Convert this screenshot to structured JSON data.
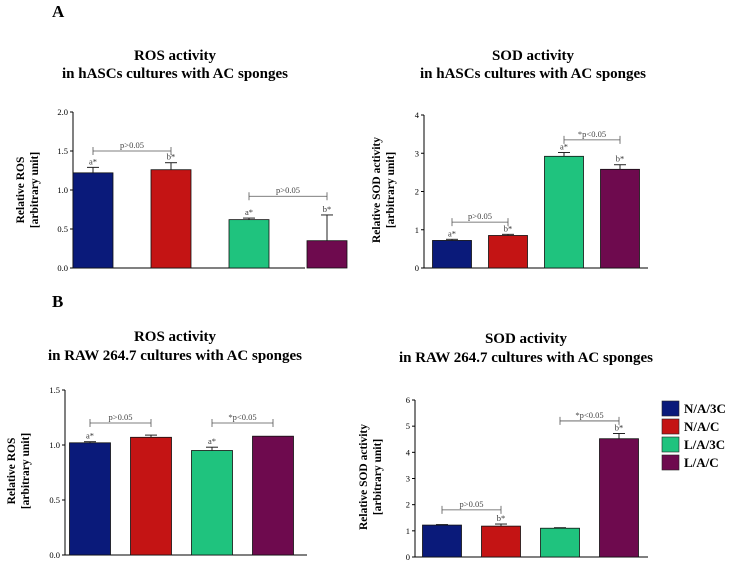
{
  "panel_labels": [
    "A",
    "B"
  ],
  "legend": {
    "entries": [
      {
        "label": "N/A/3C",
        "color": "#0a1a7a"
      },
      {
        "label": "N/A/C",
        "color": "#c41414"
      },
      {
        "label": "L/A/3C",
        "color": "#1fc37e"
      },
      {
        "label": "L/A/C",
        "color": "#6e0a4e"
      }
    ]
  },
  "chart_data": [
    {
      "id": "ros-hascs",
      "type": "bar",
      "title": [
        "ROS activity",
        "in hASCs cultures with AC sponges"
      ],
      "ylabel": [
        "Relative ROS",
        "[arbitrary unit]"
      ],
      "ylim": [
        0,
        2.0
      ],
      "yticks": [
        0.0,
        0.5,
        1.0,
        1.5,
        2.0
      ],
      "tick_decimals": 1,
      "categories": [
        "N/A/3C",
        "N/A/C",
        "L/A/3C",
        "L/A/C"
      ],
      "values": [
        1.22,
        1.26,
        0.62,
        0.35
      ],
      "errors": [
        0.07,
        0.09,
        0.02,
        0.33
      ],
      "labels": [
        "a*",
        "b*",
        "a*",
        "b*"
      ],
      "brackets": [
        {
          "from": 0,
          "to": 1,
          "y": 1.5,
          "text": "p>0.05"
        },
        {
          "from": 2,
          "to": 3,
          "y": 0.92,
          "text": "p>0.05"
        }
      ]
    },
    {
      "id": "sod-hascs",
      "type": "bar",
      "title": [
        "SOD activity",
        "in hASCs cultures with AC sponges"
      ],
      "ylabel": [
        "Relative SOD activity",
        "[arbitrary unit]"
      ],
      "ylim": [
        0,
        4
      ],
      "yticks": [
        0,
        1,
        2,
        3,
        4
      ],
      "tick_decimals": 0,
      "categories": [
        "N/A/3C",
        "N/A/C",
        "L/A/3C",
        "L/A/C"
      ],
      "values": [
        0.72,
        0.85,
        2.92,
        2.58
      ],
      "errors": [
        0.03,
        0.03,
        0.1,
        0.12
      ],
      "labels": [
        "a*",
        "b*",
        "a*",
        "b*"
      ],
      "brackets": [
        {
          "from": 0,
          "to": 1,
          "y": 1.2,
          "text": "p>0.05"
        },
        {
          "from": 2,
          "to": 3,
          "y": 3.35,
          "text": "*p<0.05"
        }
      ]
    },
    {
      "id": "ros-raw",
      "type": "bar",
      "title": [
        "ROS activity",
        "in RAW 264.7 cultures with AC sponges"
      ],
      "ylabel": [
        "Relative ROS",
        "[arbitrary unit]"
      ],
      "ylim": [
        0,
        1.5
      ],
      "yticks": [
        0.0,
        0.5,
        1.0,
        1.5
      ],
      "tick_decimals": 1,
      "categories": [
        "N/A/3C",
        "N/A/C",
        "L/A/3C",
        "L/A/C"
      ],
      "values": [
        1.02,
        1.07,
        0.95,
        1.08
      ],
      "errors": [
        0.01,
        0.02,
        0.03,
        0.0
      ],
      "labels": [
        "a*",
        "",
        "a*",
        ""
      ],
      "brackets": [
        {
          "from": 0,
          "to": 1,
          "y": 1.2,
          "text": "p>0.05"
        },
        {
          "from": 2,
          "to": 3,
          "y": 1.2,
          "text": "*p<0.05"
        }
      ]
    },
    {
      "id": "sod-raw",
      "type": "bar",
      "title": [
        "SOD activity",
        "in RAW 264.7 cultures with AC sponges"
      ],
      "ylabel": [
        "Relative SOD activity",
        "[arbitrary unit]"
      ],
      "ylim": [
        0,
        6
      ],
      "yticks": [
        0,
        1,
        2,
        3,
        4,
        5,
        6
      ],
      "tick_decimals": 0,
      "categories": [
        "N/A/3C",
        "N/A/C",
        "L/A/3C",
        "L/A/C"
      ],
      "values": [
        1.22,
        1.18,
        1.1,
        4.52
      ],
      "errors": [
        0.02,
        0.08,
        0.02,
        0.2
      ],
      "labels": [
        "",
        "b*",
        "",
        "b*"
      ],
      "brackets": [
        {
          "from": 0,
          "to": 1,
          "y": 1.8,
          "text": "p>0.05"
        },
        {
          "from": 2,
          "to": 3,
          "y": 5.2,
          "text": "*p<0.05"
        }
      ]
    }
  ]
}
